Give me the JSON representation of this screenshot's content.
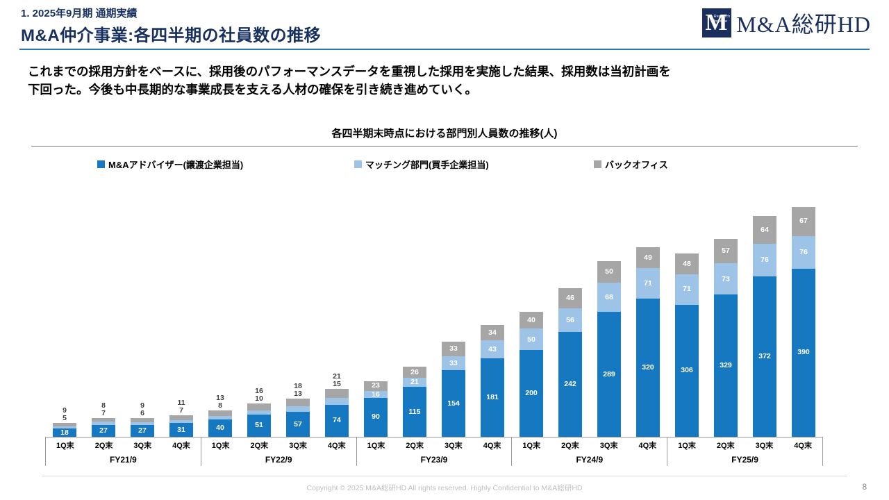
{
  "header": {
    "kicker": "1. 2025年9月期 通期実績",
    "title": "M&A仲介事業:各四半期の社員数の推移",
    "logo": {
      "mark_letter": "M",
      "mark_sub": "Research\nInstitute",
      "brand": "M&A総研HD"
    }
  },
  "message": {
    "line1": "これまでの採用方針をベースに、採用後のパフォーマンスデータを重視した採用を実施した結果、採用数は当初計画を",
    "line2": "下回った。今後も中長期的な事業成長を支える人材の確保を引き続き進めていく。"
  },
  "chart_data": {
    "type": "bar",
    "stacked": true,
    "title": "各四半期末時点における部門別人員数の推移(人)",
    "legend_position": "top",
    "grid": false,
    "ylim": [
      0,
      540
    ],
    "groups": [
      {
        "label": "FY21/9"
      },
      {
        "label": "FY22/9"
      },
      {
        "label": "FY23/9"
      },
      {
        "label": "FY24/9"
      },
      {
        "label": "FY25/9"
      }
    ],
    "categories": [
      "1Q末",
      "2Q末",
      "3Q末",
      "4Q末"
    ],
    "series": [
      {
        "key": "advisor",
        "name": "M&Aアドバイザー(譲渡企業担当)",
        "color": "#1778C2",
        "values": [
          18,
          27,
          27,
          31,
          40,
          51,
          57,
          74,
          90,
          115,
          154,
          181,
          200,
          242,
          289,
          320,
          306,
          329,
          372,
          390
        ]
      },
      {
        "key": "matching",
        "name": "マッチング部門(買手企業担当)",
        "color": "#9DC3E6",
        "values": [
          5,
          7,
          6,
          7,
          8,
          10,
          13,
          15,
          16,
          21,
          33,
          43,
          50,
          56,
          68,
          71,
          71,
          73,
          76,
          76
        ]
      },
      {
        "key": "backoffice",
        "name": "バックオフィス",
        "color": "#A6A6A6",
        "values": [
          9,
          8,
          9,
          11,
          13,
          16,
          18,
          21,
          23,
          26,
          33,
          34,
          40,
          46,
          50,
          49,
          48,
          57,
          64,
          67
        ]
      }
    ]
  },
  "footer": {
    "copyright": "Copyright © 2025 M&A総研HD All rights reserved. Highly Confidential to M&A総研HD",
    "page": "8"
  }
}
